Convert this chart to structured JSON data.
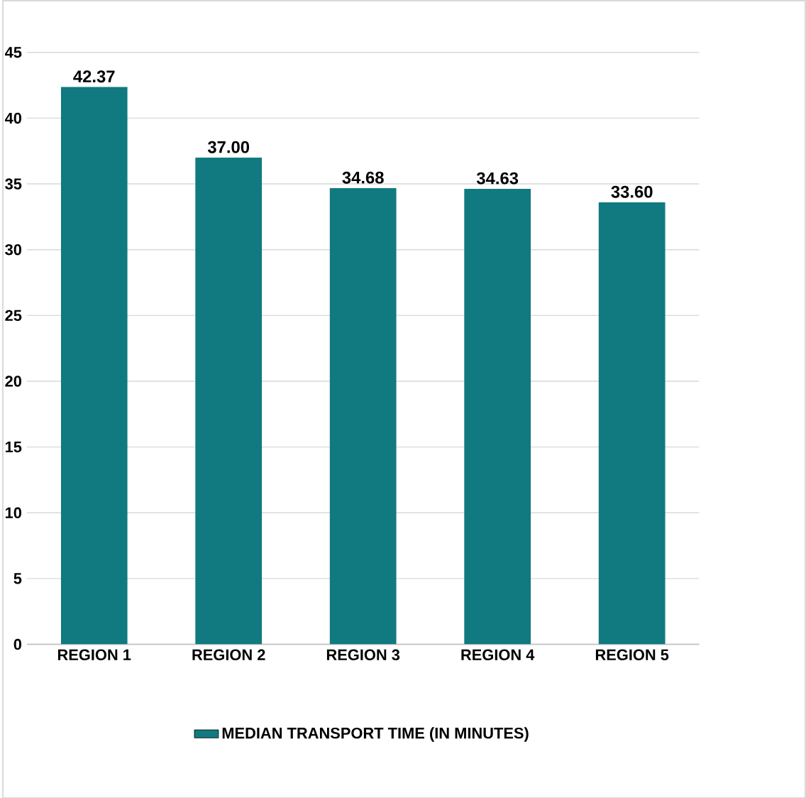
{
  "chart_data": {
    "type": "bar",
    "categories": [
      "REGION 1",
      "REGION 2",
      "REGION 3",
      "REGION 4",
      "REGION 5"
    ],
    "series": [
      {
        "name": "MEDIAN TRANSPORT TIME (IN MINUTES)",
        "color": "#107a80",
        "values": [
          42.37,
          37.0,
          34.68,
          34.63,
          33.6
        ],
        "value_labels": [
          "42.37",
          "37.00",
          "34.68",
          "34.63",
          "33.60"
        ]
      }
    ],
    "ylim": [
      0,
      45
    ],
    "yticks": [
      0,
      5,
      10,
      15,
      20,
      25,
      30,
      35,
      40,
      45
    ],
    "grid": "y",
    "legend": "bottom"
  }
}
